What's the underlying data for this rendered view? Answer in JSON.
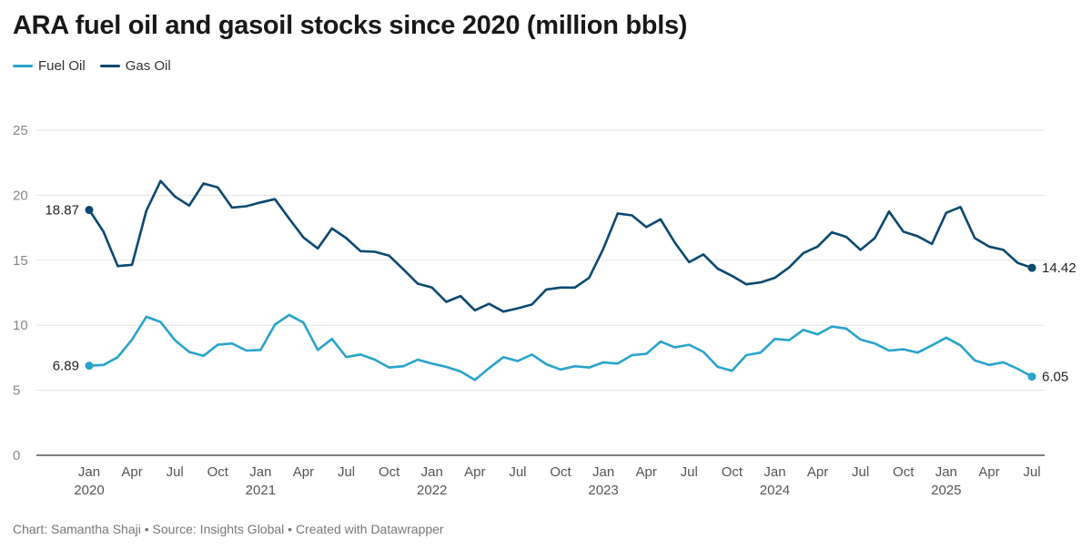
{
  "title": "ARA fuel oil and gasoil stocks since 2020 (million bbls)",
  "footer": "Chart: Samantha Shaji • Source: Insights Global • Created with Datawrapper",
  "colors": {
    "fuel_oil": "#29a3cc",
    "gas_oil": "#0b4870",
    "grid": "#e2e2e2",
    "axis": "#333333"
  },
  "chart_data": {
    "type": "line",
    "title": "ARA fuel oil and gasoil stocks since 2020 (million bbls)",
    "xlabel": "",
    "ylabel": "",
    "ylim": [
      0,
      25
    ],
    "yticks": [
      0,
      5,
      10,
      15,
      20,
      25
    ],
    "grid": true,
    "legend_position": "top-left",
    "x_start": "2020-01",
    "x_end": "2025-07",
    "x_tick_labels": [
      {
        "month": "Jan",
        "year": "2020"
      },
      {
        "month": "Apr",
        "year": ""
      },
      {
        "month": "Jul",
        "year": ""
      },
      {
        "month": "Oct",
        "year": ""
      },
      {
        "month": "Jan",
        "year": "2021"
      },
      {
        "month": "Apr",
        "year": ""
      },
      {
        "month": "Jul",
        "year": ""
      },
      {
        "month": "Oct",
        "year": ""
      },
      {
        "month": "Jan",
        "year": "2022"
      },
      {
        "month": "Apr",
        "year": ""
      },
      {
        "month": "Jul",
        "year": ""
      },
      {
        "month": "Oct",
        "year": ""
      },
      {
        "month": "Jan",
        "year": "2023"
      },
      {
        "month": "Apr",
        "year": ""
      },
      {
        "month": "Jul",
        "year": ""
      },
      {
        "month": "Oct",
        "year": ""
      },
      {
        "month": "Jan",
        "year": "2024"
      },
      {
        "month": "Apr",
        "year": ""
      },
      {
        "month": "Jul",
        "year": ""
      },
      {
        "month": "Oct",
        "year": ""
      },
      {
        "month": "Jan",
        "year": "2025"
      },
      {
        "month": "Apr",
        "year": ""
      },
      {
        "month": "Jul",
        "year": ""
      }
    ],
    "series": [
      {
        "name": "Fuel Oil",
        "color": "#29a3cc",
        "start_label": "6.89",
        "end_label": "6.05",
        "values": [
          6.89,
          6.95,
          7.55,
          8.9,
          10.65,
          10.25,
          8.85,
          7.95,
          7.65,
          8.5,
          8.6,
          8.05,
          8.1,
          10.05,
          10.8,
          10.2,
          8.1,
          8.95,
          7.55,
          7.75,
          7.35,
          6.75,
          6.85,
          7.35,
          7.05,
          6.8,
          6.45,
          5.8,
          6.7,
          7.55,
          7.25,
          7.75,
          7.0,
          6.6,
          6.85,
          6.75,
          7.15,
          7.05,
          7.7,
          7.8,
          8.75,
          8.3,
          8.5,
          7.95,
          6.8,
          6.5,
          7.7,
          7.9,
          8.95,
          8.85,
          9.65,
          9.3,
          9.9,
          9.75,
          8.9,
          8.6,
          8.05,
          8.15,
          7.9,
          8.45,
          9.05,
          8.45,
          7.3,
          6.95,
          7.15,
          6.65,
          6.05
        ]
      },
      {
        "name": "Gas Oil",
        "color": "#0b4870",
        "start_label": "18.87",
        "end_label": "14.42",
        "values": [
          18.87,
          17.2,
          14.55,
          14.65,
          18.8,
          21.1,
          19.9,
          19.2,
          20.9,
          20.6,
          19.05,
          19.15,
          19.45,
          19.7,
          18.2,
          16.75,
          15.9,
          17.45,
          16.7,
          15.7,
          15.65,
          15.35,
          14.3,
          13.2,
          12.9,
          11.8,
          12.25,
          11.15,
          11.65,
          11.05,
          11.3,
          11.6,
          12.75,
          12.9,
          12.9,
          13.65,
          15.9,
          18.6,
          18.45,
          17.55,
          18.15,
          16.35,
          14.85,
          15.45,
          14.35,
          13.8,
          13.15,
          13.3,
          13.65,
          14.45,
          15.55,
          16.05,
          17.15,
          16.8,
          15.8,
          16.7,
          18.75,
          17.2,
          16.85,
          16.25,
          18.65,
          19.1,
          16.7,
          16.05,
          15.8,
          14.8,
          14.42
        ]
      }
    ]
  }
}
